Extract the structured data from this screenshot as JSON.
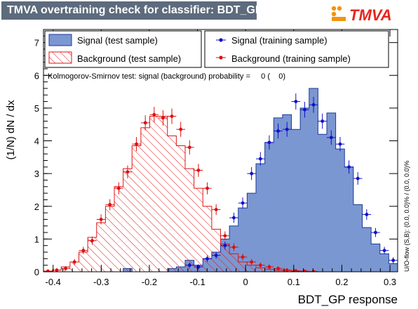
{
  "header": {
    "title": "TMVA overtraining check for classifier: BDT_GP",
    "logo_text": "TMVA"
  },
  "colors": {
    "signal_fill": "#7b97d1",
    "signal_line": "#1c3a9a",
    "background_line": "#e11414",
    "points_signal": "#1010cc",
    "points_background": "#dd1010",
    "title_bg": "#5d6b7d"
  },
  "legend": {
    "signal_test": "Signal (test sample)",
    "background_test": "Background (test sample)",
    "signal_train": "Signal (training sample)",
    "background_train": "Background (training sample)"
  },
  "ks_text": "Kolmogorov-Smirnov test: signal (background) probability =     0 (    0)",
  "side_text": "U/O-flow (S,B): (0.0, 0.0)% / (0.0, 0.0)%",
  "chart_data": {
    "type": "histogram",
    "title": "TMVA overtraining check for classifier: BDT_GP",
    "xlabel": "BDT_GP response",
    "ylabel": "(1/N) dN / dx",
    "xlim": [
      -0.42,
      0.316
    ],
    "ylim": [
      0,
      7.4
    ],
    "x_ticks": [
      -0.4,
      -0.3,
      -0.2,
      -0.1,
      0,
      0.1,
      0.2,
      0.3
    ],
    "x_tick_labels": [
      "-0.4",
      "-0.3",
      "-0.2",
      "-0.1",
      "0",
      "0.1",
      "0.2",
      "0.3"
    ],
    "y_ticks": [
      0,
      1,
      2,
      3,
      4,
      5,
      6,
      7
    ],
    "y_tick_labels": [
      "0",
      "1",
      "2",
      "3",
      "4",
      "5",
      "6",
      "7"
    ],
    "bin_edges_start": -0.42,
    "bin_width": 0.0184,
    "series": [
      {
        "name": "Signal (test sample)",
        "kind": "filled-hist",
        "values": [
          0,
          0,
          0,
          0,
          0,
          0,
          0,
          0,
          0,
          0.1,
          0,
          0,
          0,
          0,
          0.1,
          0.15,
          0.35,
          0.2,
          0.4,
          0.6,
          1.0,
          1.4,
          1.95,
          2.4,
          3.3,
          3.95,
          4.7,
          4.8,
          4.35,
          5.0,
          5.6,
          4.2,
          4.85,
          3.75,
          3.2,
          2.05,
          1.35,
          0.85,
          0.55,
          0.25
        ]
      },
      {
        "name": "Background (test sample)",
        "kind": "hatched-hist",
        "values": [
          0.02,
          0.05,
          0.15,
          0.3,
          0.6,
          1.05,
          1.5,
          2.0,
          2.6,
          3.15,
          3.85,
          4.4,
          4.75,
          4.75,
          4.15,
          3.85,
          3.15,
          2.55,
          2.0,
          1.3,
          0.85,
          0.55,
          0.3,
          0.2,
          0.12,
          0.08,
          0.05,
          0.04,
          0.02,
          0.01,
          0,
          0,
          0,
          0,
          0,
          0,
          0,
          0,
          0,
          0
        ]
      },
      {
        "name": "Signal (training sample)",
        "kind": "points",
        "values": [
          null,
          null,
          null,
          null,
          null,
          null,
          null,
          null,
          null,
          null,
          null,
          null,
          null,
          null,
          null,
          null,
          0.2,
          0.15,
          0.4,
          0.5,
          0.8,
          1.65,
          2.1,
          3.0,
          3.45,
          3.95,
          4.3,
          4.35,
          5.2,
          4.95,
          5.1,
          4.6,
          4.1,
          3.9,
          3.2,
          2.85,
          1.75,
          1.2,
          0.65,
          0.35
        ]
      },
      {
        "name": "Background (training sample)",
        "kind": "points",
        "values": [
          0.02,
          0.05,
          0.1,
          0.3,
          0.65,
          0.95,
          1.6,
          2.05,
          2.55,
          3.05,
          3.9,
          4.55,
          4.8,
          4.7,
          4.75,
          4.35,
          3.8,
          3.1,
          2.55,
          1.9,
          1.1,
          0.75,
          0.45,
          0.3,
          0.2,
          0.15,
          0.1,
          0.05,
          0.03,
          0.02,
          0.01,
          null,
          null,
          null,
          null,
          null,
          null,
          null,
          null,
          null
        ]
      }
    ],
    "legend_placement": "top",
    "grid": false
  }
}
